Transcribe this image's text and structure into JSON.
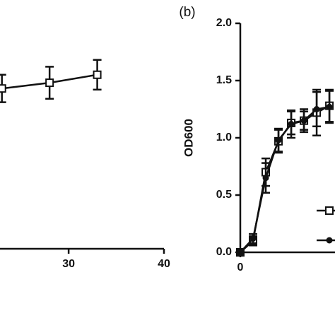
{
  "chart_data": [
    {
      "type": "line",
      "xlim": [
        22.8,
        40
      ],
      "xticks": [
        30,
        40
      ],
      "ylim": [
        0,
        2
      ],
      "series": [
        {
          "color": "#111111",
          "marker": "square",
          "x": [
            23,
            28,
            33
          ],
          "values": [
            1.4,
            1.45,
            1.52
          ],
          "errors": [
            0.12,
            0.14,
            0.13
          ]
        }
      ]
    },
    {
      "type": "line",
      "panel_label": "(b)",
      "y_label": "OD600",
      "xlim": [
        0,
        7.44
      ],
      "xticks": [
        0
      ],
      "ylim": [
        0,
        2
      ],
      "yticks": [
        {
          "value": 0,
          "label": "0.0"
        },
        {
          "value": 0.5,
          "label": "0.5"
        },
        {
          "value": 1,
          "label": "1.0"
        },
        1.5,
        {
          "value": 2,
          "label": "2.0"
        }
      ],
      "series": [
        {
          "color": "#111111",
          "marker": "square",
          "x": [
            0,
            1,
            2,
            3,
            4,
            5,
            6,
            7
          ],
          "values": [
            0.0,
            0.1,
            0.7,
            0.97,
            1.13,
            1.15,
            1.22,
            1.28
          ],
          "errors": [
            0.02,
            0.04,
            0.12,
            0.1,
            0.1,
            0.08,
            0.2,
            0.14
          ]
        },
        {
          "color": "#111111",
          "marker": "circle",
          "x": [
            0,
            1,
            2,
            3,
            4,
            5,
            6,
            7
          ],
          "values": [
            0.0,
            0.12,
            0.65,
            0.98,
            1.12,
            1.15,
            1.25,
            1.27
          ],
          "errors": [
            0.02,
            0.04,
            0.13,
            0.1,
            0.12,
            0.1,
            0.15,
            0.14
          ]
        }
      ]
    }
  ]
}
